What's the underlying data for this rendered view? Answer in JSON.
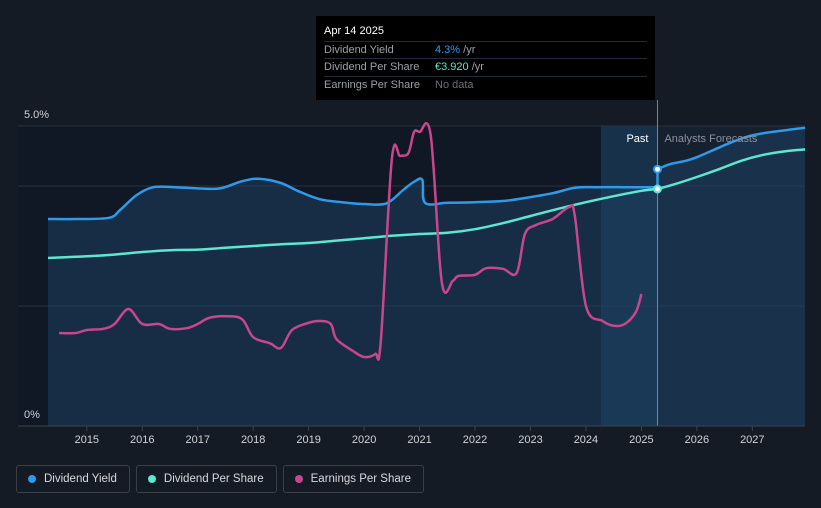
{
  "tooltip": {
    "date": "Apr 14 2025",
    "rows": [
      {
        "label": "Dividend Yield",
        "value": "4.3%",
        "unit": " /yr",
        "color": "#2f9ae8"
      },
      {
        "label": "Dividend Per Share",
        "value": "€3.920",
        "unit": " /yr",
        "color": "#5de6d0"
      },
      {
        "label": "Earnings Per Share",
        "value": "No data",
        "unit": "",
        "color": "#6b7078"
      }
    ]
  },
  "legend": [
    {
      "label": "Dividend Yield",
      "color": "#2f9ae8"
    },
    {
      "label": "Dividend Per Share",
      "color": "#5de6d0"
    },
    {
      "label": "Earnings Per Share",
      "color": "#c8478c"
    }
  ],
  "chart_data": {
    "type": "line",
    "y_axis_labels": [
      "5.0%",
      "0%"
    ],
    "ylim": [
      0,
      5
    ],
    "xlim": [
      2014.3,
      2027.95
    ],
    "x_ticks": [
      2015,
      2016,
      2017,
      2018,
      2019,
      2020,
      2021,
      2022,
      2023,
      2024,
      2025,
      2026,
      2027
    ],
    "past_label": "Past",
    "forecast_label": "Analysts Forecasts",
    "forecast_start": 2025.29,
    "highlight_start": 2024.27,
    "grid": true,
    "legend_position": "bottom-left",
    "series": [
      {
        "name": "Dividend Yield",
        "color": "#2f9ae8",
        "area": true,
        "values": [
          [
            2014.3,
            3.45
          ],
          [
            2014.8,
            3.45
          ],
          [
            2015.4,
            3.47
          ],
          [
            2015.6,
            3.6
          ],
          [
            2015.9,
            3.85
          ],
          [
            2016.2,
            3.98
          ],
          [
            2016.6,
            3.98
          ],
          [
            2017.0,
            3.96
          ],
          [
            2017.4,
            3.96
          ],
          [
            2017.8,
            4.08
          ],
          [
            2018.1,
            4.12
          ],
          [
            2018.5,
            4.05
          ],
          [
            2018.8,
            3.92
          ],
          [
            2019.2,
            3.78
          ],
          [
            2019.6,
            3.73
          ],
          [
            2020.0,
            3.7
          ],
          [
            2020.4,
            3.71
          ],
          [
            2020.7,
            3.93
          ],
          [
            2020.9,
            4.07
          ],
          [
            2021.05,
            4.1
          ],
          [
            2021.1,
            3.72
          ],
          [
            2021.5,
            3.72
          ],
          [
            2022.0,
            3.73
          ],
          [
            2022.5,
            3.75
          ],
          [
            2022.9,
            3.8
          ],
          [
            2023.4,
            3.88
          ],
          [
            2023.8,
            3.97
          ],
          [
            2024.2,
            3.98
          ],
          [
            2024.7,
            3.98
          ],
          [
            2025.0,
            3.98
          ],
          [
            2025.29,
            3.98
          ]
        ]
      },
      {
        "name": "Dividend Yield forecast",
        "color": "#2f9ae8",
        "area": true,
        "values": [
          [
            2025.29,
            4.28
          ],
          [
            2025.5,
            4.36
          ],
          [
            2025.8,
            4.42
          ],
          [
            2026.0,
            4.48
          ],
          [
            2026.3,
            4.6
          ],
          [
            2026.6,
            4.72
          ],
          [
            2026.9,
            4.82
          ],
          [
            2027.2,
            4.88
          ],
          [
            2027.6,
            4.93
          ],
          [
            2027.95,
            4.97
          ]
        ]
      },
      {
        "name": "Dividend Per Share",
        "color": "#5de6d0",
        "area": false,
        "values": [
          [
            2014.3,
            2.8
          ],
          [
            2014.8,
            2.82
          ],
          [
            2015.4,
            2.85
          ],
          [
            2016.0,
            2.9
          ],
          [
            2016.5,
            2.93
          ],
          [
            2017.0,
            2.94
          ],
          [
            2017.5,
            2.97
          ],
          [
            2018.0,
            3.0
          ],
          [
            2018.5,
            3.03
          ],
          [
            2019.0,
            3.05
          ],
          [
            2019.5,
            3.09
          ],
          [
            2020.0,
            3.13
          ],
          [
            2020.5,
            3.17
          ],
          [
            2021.0,
            3.2
          ],
          [
            2021.5,
            3.22
          ],
          [
            2022.0,
            3.28
          ],
          [
            2022.5,
            3.38
          ],
          [
            2023.0,
            3.5
          ],
          [
            2023.5,
            3.62
          ],
          [
            2024.0,
            3.73
          ],
          [
            2024.5,
            3.83
          ],
          [
            2025.0,
            3.92
          ],
          [
            2025.29,
            3.95
          ]
        ]
      },
      {
        "name": "Dividend Per Share forecast",
        "color": "#5de6d0",
        "area": false,
        "values": [
          [
            2025.29,
            3.95
          ],
          [
            2025.6,
            4.03
          ],
          [
            2026.0,
            4.15
          ],
          [
            2026.4,
            4.28
          ],
          [
            2026.8,
            4.42
          ],
          [
            2027.2,
            4.52
          ],
          [
            2027.6,
            4.58
          ],
          [
            2027.95,
            4.61
          ]
        ]
      },
      {
        "name": "Earnings Per Share",
        "color": "#c8478c",
        "area": false,
        "values": [
          [
            2014.5,
            1.55
          ],
          [
            2014.8,
            1.55
          ],
          [
            2015.0,
            1.6
          ],
          [
            2015.3,
            1.62
          ],
          [
            2015.5,
            1.7
          ],
          [
            2015.75,
            1.95
          ],
          [
            2016.0,
            1.7
          ],
          [
            2016.3,
            1.7
          ],
          [
            2016.5,
            1.62
          ],
          [
            2016.8,
            1.63
          ],
          [
            2017.0,
            1.7
          ],
          [
            2017.2,
            1.8
          ],
          [
            2017.5,
            1.83
          ],
          [
            2017.8,
            1.78
          ],
          [
            2018.0,
            1.48
          ],
          [
            2018.3,
            1.38
          ],
          [
            2018.5,
            1.3
          ],
          [
            2018.7,
            1.6
          ],
          [
            2019.0,
            1.72
          ],
          [
            2019.2,
            1.75
          ],
          [
            2019.4,
            1.7
          ],
          [
            2019.5,
            1.45
          ],
          [
            2019.8,
            1.25
          ],
          [
            2020.0,
            1.15
          ],
          [
            2020.2,
            1.2
          ],
          [
            2020.3,
            1.4
          ],
          [
            2020.5,
            4.45
          ],
          [
            2020.65,
            4.5
          ],
          [
            2020.8,
            4.55
          ],
          [
            2020.9,
            4.9
          ],
          [
            2021.0,
            4.9
          ],
          [
            2021.2,
            4.85
          ],
          [
            2021.4,
            2.4
          ],
          [
            2021.6,
            2.42
          ],
          [
            2021.7,
            2.5
          ],
          [
            2022.0,
            2.52
          ],
          [
            2022.2,
            2.63
          ],
          [
            2022.5,
            2.62
          ],
          [
            2022.75,
            2.55
          ],
          [
            2022.9,
            3.2
          ],
          [
            2023.1,
            3.35
          ],
          [
            2023.4,
            3.45
          ],
          [
            2023.7,
            3.65
          ],
          [
            2023.8,
            3.5
          ],
          [
            2024.0,
            2.0
          ],
          [
            2024.3,
            1.75
          ],
          [
            2024.5,
            1.67
          ],
          [
            2024.7,
            1.7
          ],
          [
            2024.9,
            1.9
          ],
          [
            2025.0,
            2.2
          ]
        ]
      }
    ]
  }
}
